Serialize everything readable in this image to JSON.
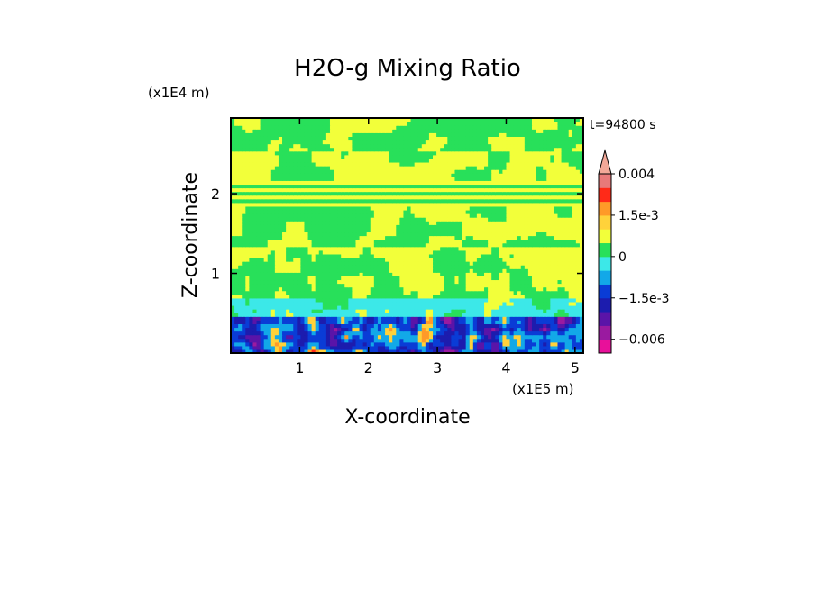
{
  "chart_data": {
    "type": "heatmap",
    "title": "H2O-g Mixing Ratio",
    "xlabel": "X-coordinate",
    "ylabel": "Z-coordinate",
    "x_unit": "(x1E5 m)",
    "y_unit": "(x1E4 m)",
    "time_label": "t=94800 s",
    "xlim": [
      0,
      5.12
    ],
    "ylim": [
      0,
      2.95
    ],
    "x_ticks": [
      1,
      2,
      3,
      4,
      5
    ],
    "x_tick_labels": [
      "1",
      "2",
      "3",
      "4",
      "5"
    ],
    "y_ticks": [
      1,
      2
    ],
    "y_tick_labels": [
      "1",
      "2"
    ],
    "colorbar": {
      "levels": [
        -0.008,
        -0.006,
        -0.004,
        -0.0025,
        -0.0015,
        -0.001,
        -0.0005,
        0,
        0.0005,
        0.001,
        0.0015,
        0.002,
        0.003,
        0.004
      ],
      "colors": [
        "#e8109a",
        "#9a1aa0",
        "#5a14a8",
        "#1c1cae",
        "#0a3cd6",
        "#12a8e8",
        "#3ce8e8",
        "#28e05a",
        "#f2ff3a",
        "#ffd23a",
        "#ff9a28",
        "#ff2a18",
        "#e87a7a",
        "#f2a898"
      ],
      "labels": [
        {
          "value": 0.004,
          "text": "0.004"
        },
        {
          "value": 0.0015,
          "text": "1.5e-3"
        },
        {
          "value": 0,
          "text": "0"
        },
        {
          "value": -0.0015,
          "text": "−1.5e-3"
        },
        {
          "value": -0.006,
          "text": "−0.006"
        }
      ],
      "extend": "max"
    },
    "field_description_bands": [
      {
        "z_range": [
          2.55,
          2.95
        ],
        "dominant": "green/yellow mix"
      },
      {
        "z_range": [
          1.35,
          2.55
        ],
        "dominant": "yellow/green layers"
      },
      {
        "z_range": [
          0.7,
          1.35
        ],
        "dominant": "yellow with green plumes"
      },
      {
        "z_range": [
          0.45,
          0.7
        ],
        "dominant": "cyan/green"
      },
      {
        "z_range": [
          0,
          0.45
        ],
        "dominant": "blue/purple with orange cells"
      }
    ]
  }
}
